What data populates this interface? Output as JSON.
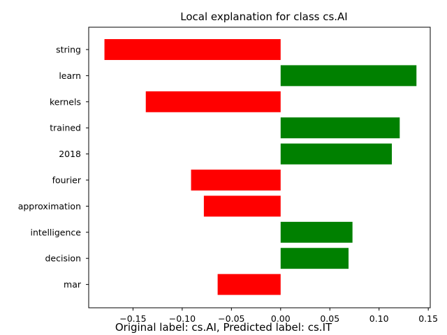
{
  "chart_data": {
    "type": "bar",
    "orientation": "horizontal",
    "title": "Local explanation for class cs.AI",
    "caption": "Original label: cs.AI, Predicted label: cs.IT",
    "xlabel": "",
    "ylabel": "",
    "categories": [
      "string",
      "learn",
      "kernels",
      "trained",
      "2018",
      "fourier",
      "approximation",
      "intelligence",
      "decision",
      "mar"
    ],
    "values": [
      -0.179,
      0.138,
      -0.137,
      0.121,
      0.113,
      -0.091,
      -0.078,
      0.073,
      0.069,
      -0.064
    ],
    "xlim": [
      -0.195,
      0.152
    ],
    "xticks": [
      -0.15,
      -0.1,
      -0.05,
      0.0,
      0.05,
      0.1,
      0.15
    ],
    "xtick_labels": [
      "−0.15",
      "−0.10",
      "−0.05",
      "0.00",
      "0.05",
      "0.10",
      "0.15"
    ],
    "colors": {
      "positive": "#008000",
      "negative": "#ff0000"
    },
    "grid": false,
    "legend": "none"
  }
}
